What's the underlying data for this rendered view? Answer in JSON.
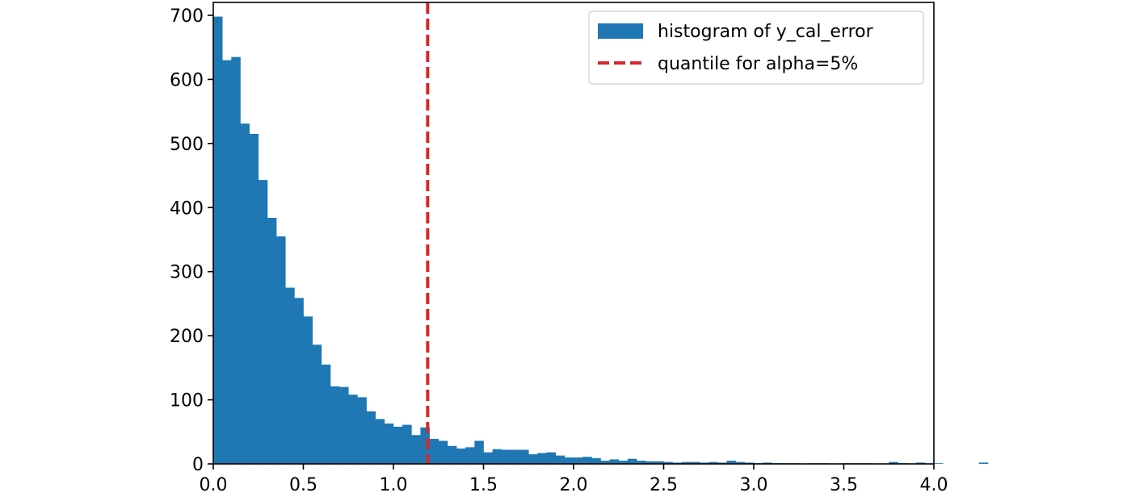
{
  "chart_data": {
    "type": "histogram",
    "title": "",
    "xlabel": "",
    "ylabel": "",
    "xlim": [
      0.0,
      4.0
    ],
    "ylim": [
      0,
      700
    ],
    "xticks": [
      "0.0",
      "0.5",
      "1.0",
      "1.5",
      "2.0",
      "2.5",
      "3.0",
      "3.5",
      "4.0"
    ],
    "yticks": [
      "0",
      "100",
      "200",
      "300",
      "400",
      "500",
      "600",
      "700"
    ],
    "grid": false,
    "legend_position": "top-right",
    "series": [
      {
        "name": "histogram of y_cal_error",
        "kind": "bars",
        "color": "#1f77b4",
        "bin_start": 0.0,
        "bin_width": 0.05,
        "values": [
          698,
          630,
          635,
          531,
          515,
          443,
          384,
          355,
          275,
          259,
          230,
          186,
          155,
          121,
          120,
          108,
          104,
          82,
          70,
          63,
          58,
          61,
          45,
          57,
          39,
          36,
          28,
          24,
          26,
          36,
          18,
          23,
          22,
          22,
          22,
          15,
          17,
          18,
          13,
          10,
          10,
          11,
          9,
          5,
          7,
          5,
          8,
          5,
          4,
          4,
          3,
          2,
          3,
          3,
          2,
          3,
          2,
          5,
          3,
          2,
          1,
          2,
          1,
          1,
          1,
          0,
          1,
          1,
          0,
          0,
          1,
          1,
          1,
          0,
          0,
          3,
          1,
          0,
          2,
          0,
          1,
          0,
          0,
          0,
          0,
          2,
          0,
          0,
          0,
          0,
          0,
          0,
          0,
          0,
          0,
          0,
          0,
          0,
          0,
          0
        ]
      },
      {
        "name": "quantile for alpha=5%",
        "kind": "vline",
        "color": "#d62728",
        "x": 1.19
      }
    ]
  }
}
